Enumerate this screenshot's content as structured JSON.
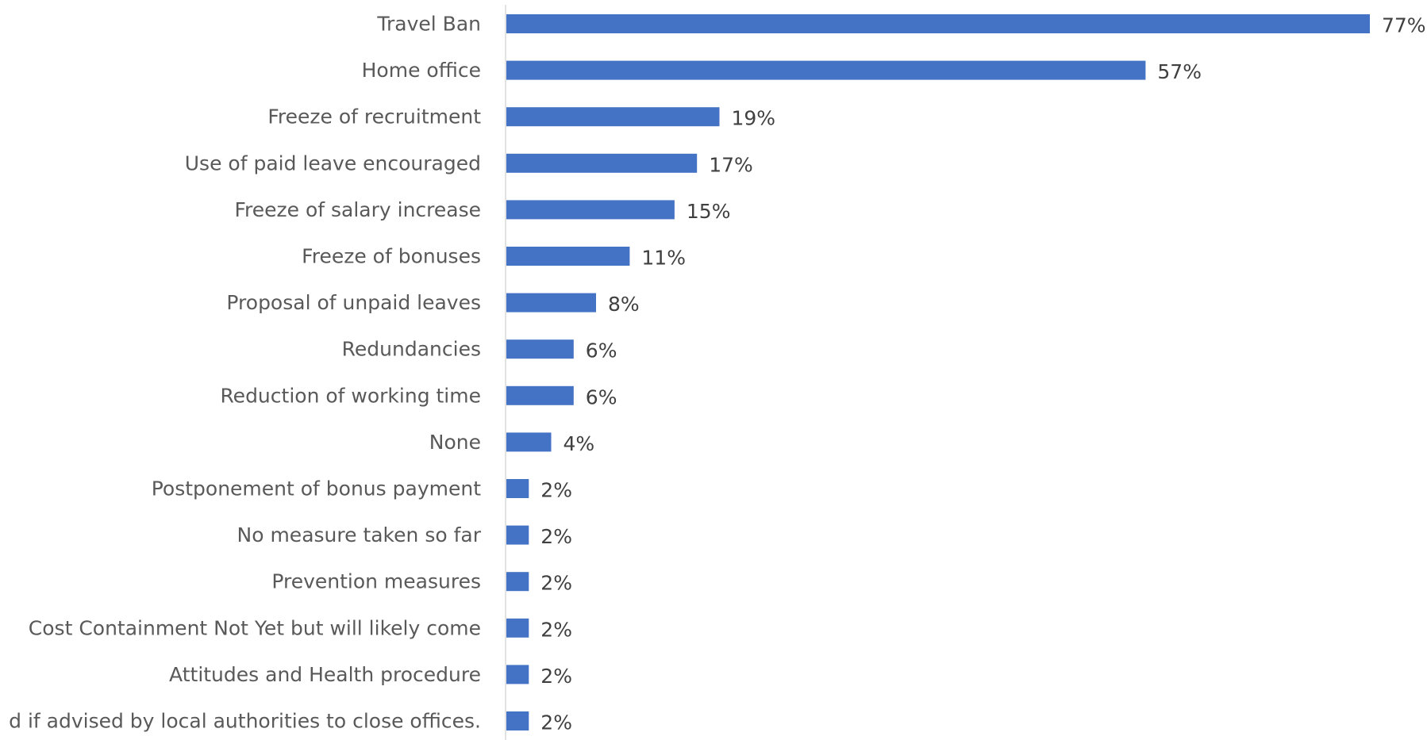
{
  "chart_data": {
    "type": "bar",
    "orientation": "horizontal",
    "title": "",
    "xlabel": "",
    "ylabel": "",
    "xlim": [
      0,
      77
    ],
    "grid": false,
    "legend": "none",
    "bar_color": "#4472C4",
    "categories": [
      "Travel Ban",
      "Home office",
      "Freeze of recruitment",
      "Use of paid leave encouraged",
      "Freeze of salary increase",
      "Freeze of bonuses",
      "Proposal of unpaid leaves",
      "Redundancies",
      "Reduction of working time",
      "None",
      "Postponement of bonus payment",
      "No measure taken so far",
      "Prevention measures",
      "Cost Containment Not Yet but will likely come",
      "Attitudes and Health procedure",
      "d if advised by local authorities to close offices."
    ],
    "values": [
      77,
      57,
      19,
      17,
      15,
      11,
      8,
      6,
      6,
      4,
      2,
      2,
      2,
      2,
      2,
      2
    ],
    "value_labels": [
      "77%",
      "57%",
      "19%",
      "17%",
      "15%",
      "11%",
      "8%",
      "6%",
      "6%",
      "4%",
      "2%",
      "2%",
      "2%",
      "2%",
      "2%",
      "2%"
    ]
  }
}
